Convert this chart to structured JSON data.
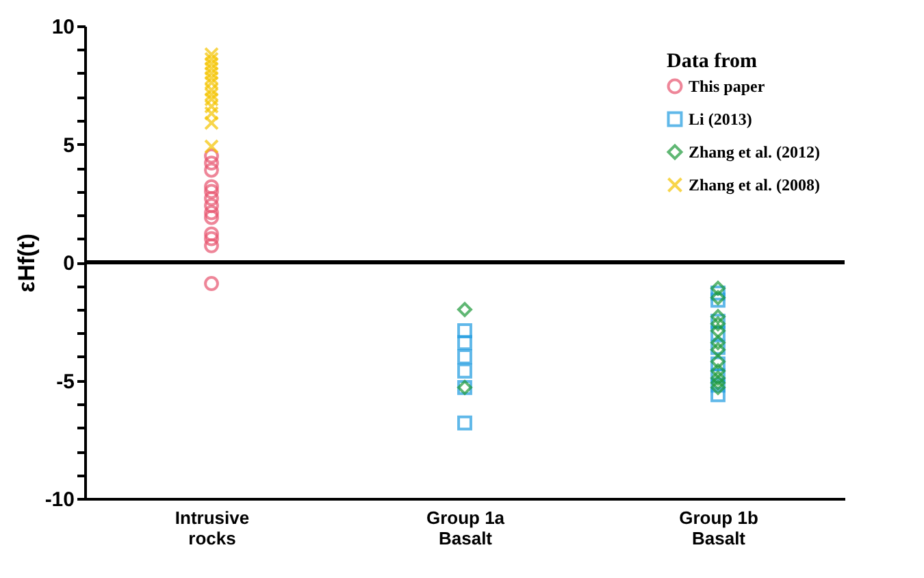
{
  "chart_data": {
    "type": "scatter",
    "ylabel": "εHf(t)",
    "legend_title": "Data from",
    "legend": "top right",
    "grid": false,
    "categories": [
      "Intrusive\nrocks",
      "Group 1a\nBasalt",
      "Group 1b\nBasalt"
    ],
    "ylim": [
      -10,
      10
    ],
    "yticks": [
      -10,
      {
        "value": -9,
        "label": null
      },
      {
        "value": -8,
        "label": null
      },
      {
        "value": -7,
        "label": null
      },
      {
        "value": -6,
        "label": null
      },
      -5,
      {
        "value": -4,
        "label": null
      },
      {
        "value": -3,
        "label": null
      },
      {
        "value": -2,
        "label": null
      },
      {
        "value": -1,
        "label": null
      },
      0,
      {
        "value": 1,
        "label": null
      },
      {
        "value": 2,
        "label": null
      },
      {
        "value": 3,
        "label": null
      },
      {
        "value": 4,
        "label": null
      },
      5,
      {
        "value": 6,
        "label": null
      },
      {
        "value": 7,
        "label": null
      },
      {
        "value": 8,
        "label": null
      },
      {
        "value": 9,
        "label": null
      },
      10
    ],
    "ref_lines": [
      {
        "axis": "y",
        "value": 0,
        "color": "#000000"
      }
    ],
    "series": [
      {
        "name": "This paper",
        "color": "#e8546e",
        "marker": "circle",
        "x": [
          "Intrusive\nrocks",
          "Intrusive\nrocks",
          "Intrusive\nrocks",
          "Intrusive\nrocks",
          "Intrusive\nrocks",
          "Intrusive\nrocks",
          "Intrusive\nrocks",
          "Intrusive\nrocks",
          "Intrusive\nrocks",
          "Intrusive\nrocks",
          "Intrusive\nrocks",
          "Intrusive\nrocks",
          "Intrusive\nrocks"
        ],
        "values": [
          -0.9,
          0.7,
          1.0,
          1.2,
          1.9,
          2.1,
          2.4,
          2.7,
          3.0,
          3.2,
          3.9,
          4.2,
          4.5
        ]
      },
      {
        "name": "Li (2013)",
        "color": "#1e9be0",
        "marker": "square",
        "x": [
          "Group 1a\nBasalt",
          "Group 1a\nBasalt",
          "Group 1a\nBasalt",
          "Group 1a\nBasalt",
          "Group 1a\nBasalt",
          "Group 1a\nBasalt",
          "Group 1b\nBasalt",
          "Group 1b\nBasalt",
          "Group 1b\nBasalt",
          "Group 1b\nBasalt",
          "Group 1b\nBasalt",
          "Group 1b\nBasalt",
          "Group 1b\nBasalt",
          "Group 1b\nBasalt",
          "Group 1b\nBasalt"
        ],
        "values": [
          -2.9,
          -3.4,
          -4.0,
          -4.6,
          -5.3,
          -6.8,
          -1.3,
          -1.6,
          -2.5,
          -3.0,
          -3.6,
          -4.3,
          -4.8,
          -5.2,
          -5.6
        ]
      },
      {
        "name": "Zhang et al. (2012)",
        "color": "#1e9a3a",
        "marker": "diamond",
        "x": [
          "Group 1a\nBasalt",
          "Group 1a\nBasalt",
          "Group 1b\nBasalt",
          "Group 1b\nBasalt",
          "Group 1b\nBasalt",
          "Group 1b\nBasalt",
          "Group 1b\nBasalt",
          "Group 1b\nBasalt",
          "Group 1b\nBasalt",
          "Group 1b\nBasalt",
          "Group 1b\nBasalt",
          "Group 1b\nBasalt",
          "Group 1b\nBasalt",
          "Group 1b\nBasalt"
        ],
        "values": [
          -2.0,
          -5.3,
          -1.1,
          -1.5,
          -2.3,
          -2.6,
          -2.9,
          -3.4,
          -3.7,
          -4.2,
          -4.6,
          -4.9,
          -5.1,
          -5.3
        ]
      },
      {
        "name": "Zhang et al. (2008)",
        "color": "#f5c400",
        "marker": "cross",
        "x": [
          "Intrusive\nrocks",
          "Intrusive\nrocks",
          "Intrusive\nrocks",
          "Intrusive\nrocks",
          "Intrusive\nrocks",
          "Intrusive\nrocks",
          "Intrusive\nrocks",
          "Intrusive\nrocks",
          "Intrusive\nrocks",
          "Intrusive\nrocks",
          "Intrusive\nrocks",
          "Intrusive\nrocks",
          "Intrusive\nrocks",
          "Intrusive\nrocks"
        ],
        "values": [
          4.9,
          5.9,
          6.3,
          6.6,
          6.9,
          7.1,
          7.3,
          7.6,
          7.8,
          8.0,
          8.2,
          8.4,
          8.6,
          8.8
        ]
      }
    ]
  }
}
